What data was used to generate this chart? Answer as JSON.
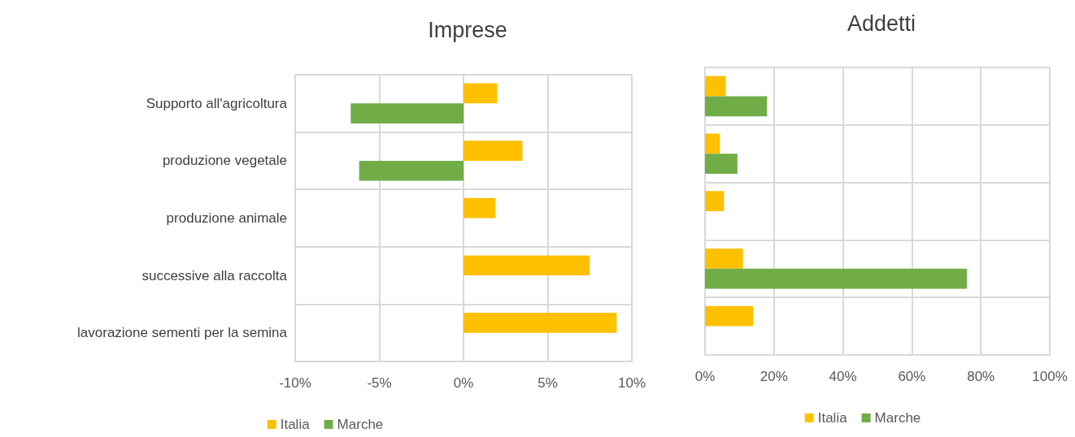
{
  "chart_data": [
    {
      "type": "bar",
      "title": "Imprese",
      "orientation": "horizontal",
      "categories": [
        "Supporto all'agricoltura",
        "produzione vegetale",
        "produzione animale",
        "successive alla raccolta",
        "lavorazione sementi per la semina"
      ],
      "series": [
        {
          "name": "Italia",
          "color": "#ffc000",
          "values": [
            2.0,
            3.5,
            1.9,
            7.5,
            9.1
          ]
        },
        {
          "name": "Marche",
          "color": "#70ad47",
          "values": [
            -6.7,
            -6.2,
            null,
            null,
            null
          ]
        }
      ],
      "xlim": [
        -10,
        10
      ],
      "xticks": [
        {
          "value": -10,
          "label": "-10%"
        },
        {
          "value": -5,
          "label": "-5%"
        },
        {
          "value": 0,
          "label": "0%"
        },
        {
          "value": 5,
          "label": "5%"
        },
        {
          "value": 10,
          "label": "10%"
        }
      ],
      "grid": true,
      "legend": "bottom"
    },
    {
      "type": "bar",
      "title": "Addetti",
      "orientation": "horizontal",
      "categories": [
        null,
        null,
        null,
        null,
        null
      ],
      "series": [
        {
          "name": "Italia",
          "color": "#ffc000",
          "values": [
            6,
            4.3,
            5.5,
            11,
            14
          ]
        },
        {
          "name": "Marche",
          "color": "#70ad47",
          "values": [
            18,
            9.4,
            null,
            76,
            null
          ]
        }
      ],
      "xlim": [
        0,
        100
      ],
      "xticks": [
        {
          "value": 0,
          "label": "0%"
        },
        {
          "value": 20,
          "label": "20%"
        },
        {
          "value": 40,
          "label": "40%"
        },
        {
          "value": 60,
          "label": "60%"
        },
        {
          "value": 80,
          "label": "80%"
        },
        {
          "value": 100,
          "label": "100%"
        }
      ],
      "grid": true,
      "legend": "bottom",
      "tick_labels": "x"
    }
  ]
}
